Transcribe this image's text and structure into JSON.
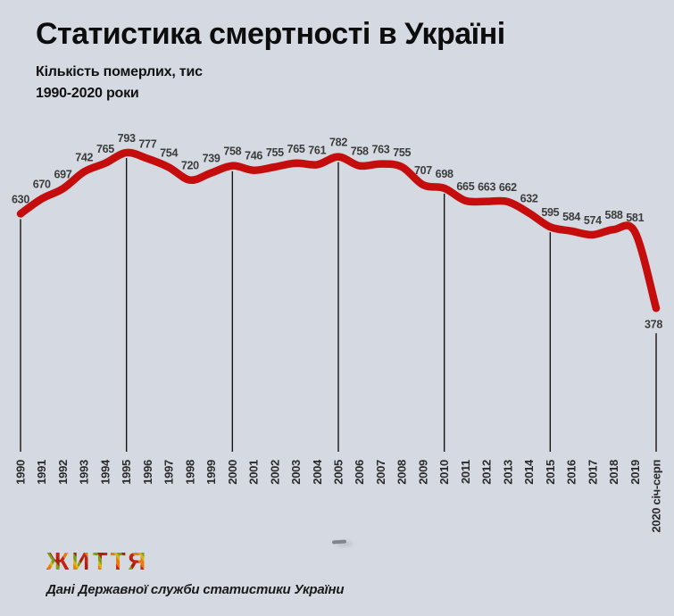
{
  "colors": {
    "background": "#d5d9e1",
    "line": "#c60d0d",
    "value_label": "#3c3c3c",
    "axis_label": "#2b2b2b",
    "tick_line": "#141414"
  },
  "chart_data": {
    "type": "line",
    "title": "Статистика смертності в Україні",
    "subtitle": "Кількість померлих, тис",
    "subtitle2": "1990-2020 роки",
    "xlabel": "",
    "ylabel": "",
    "grid": "off",
    "legend": "none",
    "ylim": [
      378,
      793
    ],
    "categories": [
      "1990",
      "1991",
      "1992",
      "1993",
      "1994",
      "1995",
      "1996",
      "1997",
      "1998",
      "1999",
      "2000",
      "2001",
      "2002",
      "2003",
      "2004",
      "2005",
      "2006",
      "2007",
      "2008",
      "2009",
      "2010",
      "2011",
      "2012",
      "2013",
      "2014",
      "2015",
      "2016",
      "2017",
      "2018",
      "2019",
      "2020 січ-серп"
    ],
    "values": [
      630,
      670,
      697,
      742,
      765,
      793,
      777,
      754,
      720,
      739,
      758,
      746,
      755,
      765,
      761,
      782,
      758,
      763,
      755,
      707,
      698,
      665,
      663,
      662,
      632,
      595,
      584,
      574,
      588,
      581,
      378
    ],
    "gridline_categories": [
      "1990",
      "1995",
      "2000",
      "2005",
      "2010",
      "2015",
      "2020 січ-серп"
    ]
  },
  "footer": {
    "logo_text": "ЖИТТЯ",
    "source": "Дані Державної служби статистики України"
  }
}
